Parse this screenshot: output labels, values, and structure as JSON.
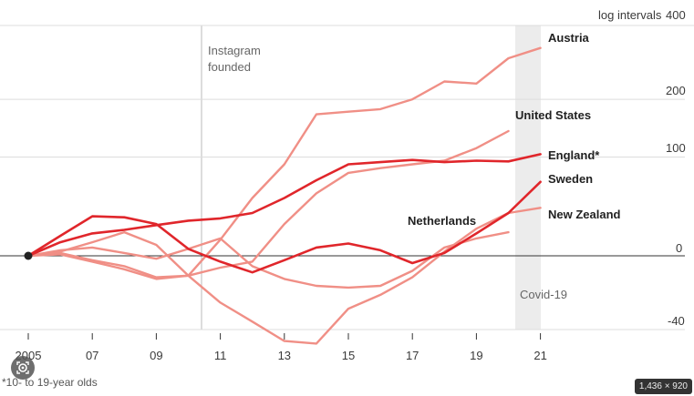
{
  "chart_data": {
    "type": "line",
    "scale_label": "log intervals",
    "y_ticks": [
      {
        "value": 400,
        "label": "400"
      },
      {
        "value": 200,
        "label": "200"
      },
      {
        "value": 100,
        "label": "100"
      },
      {
        "value": 0,
        "label": "0"
      },
      {
        "value": -40,
        "label": "-40"
      }
    ],
    "x_ticks": [
      {
        "value": 2005,
        "label": "2005"
      },
      {
        "value": 2007,
        "label": "07"
      },
      {
        "value": 2009,
        "label": "09"
      },
      {
        "value": 2011,
        "label": "11"
      },
      {
        "value": 2013,
        "label": "13"
      },
      {
        "value": 2015,
        "label": "15"
      },
      {
        "value": 2017,
        "label": "17"
      },
      {
        "value": 2019,
        "label": "19"
      },
      {
        "value": 2021,
        "label": "21"
      }
    ],
    "xlim": [
      2005,
      2021.5
    ],
    "y_scale": "log(1 + value/100)",
    "grid": "horizontal",
    "annotations": [
      {
        "label": "Instagram founded",
        "x": 2010.5,
        "lines": [
          "Instagram",
          "founded"
        ]
      },
      {
        "label": "Covid-19",
        "x_range": [
          2020.2,
          2021
        ]
      }
    ],
    "footnote": "*10- to 19-year olds",
    "series": [
      {
        "name": "New Zealand",
        "color": "#f08f86",
        "x": [
          2005,
          2006,
          2007,
          2008,
          2009,
          2010,
          2011,
          2012,
          2013,
          2014,
          2015,
          2016,
          2017,
          2018,
          2019,
          2020,
          2021
        ],
        "y": [
          0,
          3,
          10,
          18,
          8,
          -13,
          -28,
          -37,
          -45,
          -46,
          -31,
          -24,
          -14,
          3,
          21,
          35,
          40
        ]
      },
      {
        "name": "United States",
        "color": "#f08f86",
        "x": [
          2005,
          2006,
          2007,
          2008,
          2009,
          2010,
          2011,
          2012,
          2013,
          2014,
          2015,
          2016,
          2017,
          2018,
          2019,
          2020
        ],
        "y": [
          0,
          2,
          -3,
          -7,
          -14,
          -13,
          -8,
          -4,
          25,
          55,
          79,
          85,
          90,
          95,
          113,
          140
        ]
      },
      {
        "name": "England*",
        "color": "#e0262b",
        "x": [
          2005,
          2006,
          2007,
          2008,
          2009,
          2010,
          2011,
          2012,
          2013,
          2014,
          2015,
          2016,
          2017,
          2018,
          2019,
          2020,
          2021
        ],
        "y": [
          0,
          10,
          17,
          20,
          24,
          28,
          30,
          35,
          50,
          70,
          90,
          93,
          96,
          93,
          95,
          94,
          104
        ]
      },
      {
        "name": "Sweden",
        "color": "#e0262b",
        "x": [
          2005,
          2006,
          2007,
          2008,
          2009,
          2010,
          2011,
          2012,
          2013,
          2014,
          2015,
          2016,
          2017,
          2018,
          2019,
          2020,
          2021
        ],
        "y": [
          0,
          15,
          32,
          31,
          25,
          5,
          -4,
          -11,
          -3,
          6,
          9,
          4,
          -5,
          2,
          17,
          35,
          68
        ]
      },
      {
        "name": "Austria",
        "color": "#f08f86",
        "x": [
          2005,
          2006,
          2007,
          2008,
          2009,
          2010,
          2011,
          2012,
          2013,
          2014,
          2015,
          2016,
          2017,
          2018,
          2019,
          2020,
          2021
        ],
        "y": [
          0,
          1,
          -4,
          -9,
          -15,
          -13,
          12,
          50,
          90,
          170,
          175,
          180,
          200,
          240,
          235,
          300,
          330
        ]
      },
      {
        "name": "Netherlands",
        "color": "#f08f86",
        "x": [
          2005,
          2006,
          2007,
          2008,
          2009,
          2010,
          2011,
          2012,
          2013,
          2014,
          2015,
          2016,
          2017,
          2018,
          2019,
          2020
        ],
        "y": [
          0,
          4,
          6,
          2,
          -2,
          5,
          13,
          -7,
          -15,
          -19,
          -20,
          -19,
          -10,
          6,
          13,
          18
        ]
      }
    ]
  },
  "footnote": "*10- to 19-year olds",
  "dims_badge": "1,436 × 920",
  "colors": {
    "bright_red": "#e0262b",
    "light_red": "#f08f86",
    "covid_band": "#ececec"
  }
}
